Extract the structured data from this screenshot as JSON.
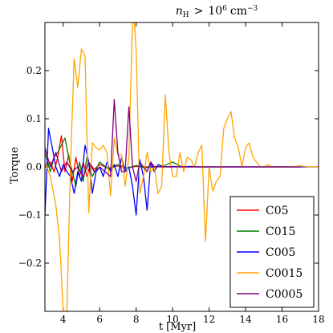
{
  "chart_data": {
    "type": "line",
    "title": "n_H > 10^6 cm^-3",
    "title_parts": {
      "var": "n",
      "var_sub": "H",
      "op": ">",
      "value_base": "10",
      "value_exp": "6",
      "unit": "cm",
      "unit_exp": "−3"
    },
    "xlabel": "t [Myr]",
    "ylabel": "Torque",
    "xlim": [
      3,
      18
    ],
    "ylim": [
      -0.3,
      0.3
    ],
    "xticks": [
      4,
      6,
      8,
      10,
      12,
      14,
      16,
      18
    ],
    "yticks": [
      -0.3,
      -0.2,
      -0.1,
      0.0,
      0.1,
      0.2
    ],
    "ytick_labels": [
      "−0.3",
      "−0.2",
      "−0.1",
      "0.0",
      "0.1",
      "0.2"
    ],
    "grid": false,
    "legend_position": "bottom-right",
    "series": [
      {
        "name": "C05",
        "color": "#ff0000",
        "x": [
          3.0,
          3.3,
          3.5,
          3.7,
          3.9,
          4.1,
          4.3,
          4.5,
          4.7,
          4.9,
          5.1,
          5.3,
          5.5,
          5.7,
          6.0,
          6.5,
          7.0,
          7.5,
          8.0,
          8.5,
          9.0,
          9.5,
          10.0,
          11.0,
          12.0,
          13.0,
          14.0,
          15.0,
          16.0,
          17.0
        ],
        "y": [
          0.0,
          0.01,
          -0.01,
          0.02,
          0.065,
          -0.01,
          0.025,
          -0.03,
          0.02,
          -0.02,
          0.01,
          -0.02,
          0.005,
          -0.005,
          0.005,
          -0.003,
          0.002,
          -0.002,
          0.001,
          0.0,
          0.001,
          0.0,
          0.0,
          0.0,
          0.0,
          0.0,
          0.0,
          0.0,
          0.0,
          0.0
        ]
      },
      {
        "name": "C015",
        "color": "#008000",
        "x": [
          3.0,
          3.3,
          3.5,
          3.7,
          3.9,
          4.1,
          4.3,
          4.5,
          4.7,
          4.9,
          5.1,
          5.3,
          5.6,
          6.0,
          6.5,
          7.0,
          7.5,
          8.0,
          8.5,
          9.0,
          9.5,
          10.0,
          10.5,
          11.0,
          12.0,
          13.0,
          14.0,
          15.0,
          16.0,
          17.0
        ],
        "y": [
          0.03,
          -0.01,
          0.02,
          0.03,
          0.045,
          0.06,
          0.02,
          -0.01,
          -0.04,
          0.01,
          -0.03,
          0.02,
          -0.02,
          0.01,
          -0.005,
          0.005,
          -0.003,
          0.003,
          -0.002,
          0.0,
          0.002,
          0.01,
          0.0,
          0.0,
          0.0,
          0.0,
          0.0,
          0.0,
          0.0,
          0.0
        ]
      },
      {
        "name": "C005",
        "color": "#0000ff",
        "x": [
          3.0,
          3.2,
          3.4,
          3.6,
          3.8,
          4.0,
          4.2,
          4.4,
          4.6,
          4.8,
          5.0,
          5.2,
          5.4,
          5.6,
          5.8,
          6.0,
          6.2,
          6.4,
          6.6,
          6.8,
          7.0,
          7.2,
          7.4,
          7.6,
          7.8,
          8.0,
          8.2,
          8.4,
          8.6,
          8.8,
          9.0,
          9.2,
          9.5,
          10.0,
          10.5,
          11.0,
          11.5,
          12.0,
          13.0,
          14.0,
          15.0,
          16.0,
          17.0,
          18.0
        ],
        "y": [
          -0.1,
          0.08,
          0.04,
          0.0,
          -0.02,
          0.005,
          -0.01,
          -0.02,
          -0.055,
          -0.01,
          -0.03,
          0.045,
          0.01,
          -0.055,
          -0.01,
          0.0,
          -0.02,
          0.01,
          -0.01,
          0.005,
          -0.02,
          0.02,
          -0.01,
          0.0,
          -0.04,
          -0.1,
          0.015,
          -0.02,
          -0.09,
          0.01,
          -0.01,
          0.005,
          0.0,
          0.001,
          0.0,
          0.001,
          0.0,
          0.0,
          0.0,
          0.0,
          0.0,
          0.0,
          0.0,
          0.0
        ]
      },
      {
        "name": "C0015",
        "color": "#ffa500",
        "x": [
          3.0,
          3.3,
          3.6,
          3.8,
          4.0,
          4.2,
          4.4,
          4.6,
          4.8,
          5.0,
          5.2,
          5.4,
          5.6,
          5.8,
          6.0,
          6.2,
          6.4,
          6.6,
          6.8,
          7.0,
          7.2,
          7.4,
          7.6,
          7.8,
          7.9,
          8.0,
          8.2,
          8.4,
          8.6,
          8.8,
          9.0,
          9.2,
          9.4,
          9.6,
          9.8,
          10.0,
          10.2,
          10.4,
          10.6,
          10.8,
          11.0,
          11.2,
          11.4,
          11.6,
          11.8,
          12.0,
          12.2,
          12.4,
          12.6,
          12.8,
          13.0,
          13.2,
          13.4,
          13.6,
          13.8,
          14.0,
          14.2,
          14.4,
          14.6,
          14.8,
          15.0,
          15.2,
          15.5,
          16.0,
          16.5,
          17.0,
          17.5,
          18.0
        ],
        "y": [
          0.01,
          -0.02,
          -0.08,
          -0.15,
          -0.3,
          -0.3,
          0.0,
          0.225,
          0.165,
          0.245,
          0.23,
          -0.095,
          0.05,
          0.04,
          0.035,
          0.045,
          0.03,
          -0.06,
          0.06,
          0.025,
          0.025,
          -0.04,
          0.02,
          0.3,
          0.3,
          0.24,
          -0.055,
          -0.02,
          0.03,
          -0.01,
          0.0,
          -0.055,
          -0.04,
          0.15,
          0.03,
          -0.02,
          -0.02,
          0.03,
          -0.01,
          0.02,
          0.015,
          0.0,
          0.03,
          0.045,
          -0.155,
          0.0,
          -0.05,
          -0.03,
          -0.02,
          0.08,
          0.1,
          0.115,
          0.06,
          0.04,
          0.0,
          0.04,
          0.05,
          0.02,
          0.01,
          0.0,
          0.0,
          0.005,
          0.0,
          0.0,
          0.0,
          0.002,
          0.0,
          0.0
        ]
      },
      {
        "name": "C0005",
        "color": "#800080",
        "x": [
          3.0,
          3.3,
          3.6,
          3.9,
          4.2,
          4.5,
          4.8,
          5.1,
          5.4,
          5.7,
          6.0,
          6.3,
          6.6,
          6.8,
          7.0,
          7.2,
          7.4,
          7.6,
          7.8,
          8.0,
          8.2,
          8.4,
          8.6,
          8.8,
          9.0,
          9.2,
          9.5,
          10.0,
          10.5,
          11.0,
          12.0,
          13.0,
          14.0,
          15.0,
          16.0,
          17.0
        ],
        "y": [
          0.04,
          0.0,
          0.03,
          -0.01,
          0.01,
          -0.01,
          0.0,
          -0.02,
          0.01,
          -0.01,
          0.0,
          -0.01,
          -0.02,
          0.14,
          0.03,
          -0.01,
          -0.01,
          0.125,
          0.0,
          -0.03,
          0.01,
          0.0,
          -0.01,
          0.01,
          0.0,
          0.0,
          0.0,
          0.0,
          0.0,
          0.0,
          0.0,
          0.0,
          0.0,
          0.0,
          0.0,
          0.0
        ]
      }
    ]
  }
}
